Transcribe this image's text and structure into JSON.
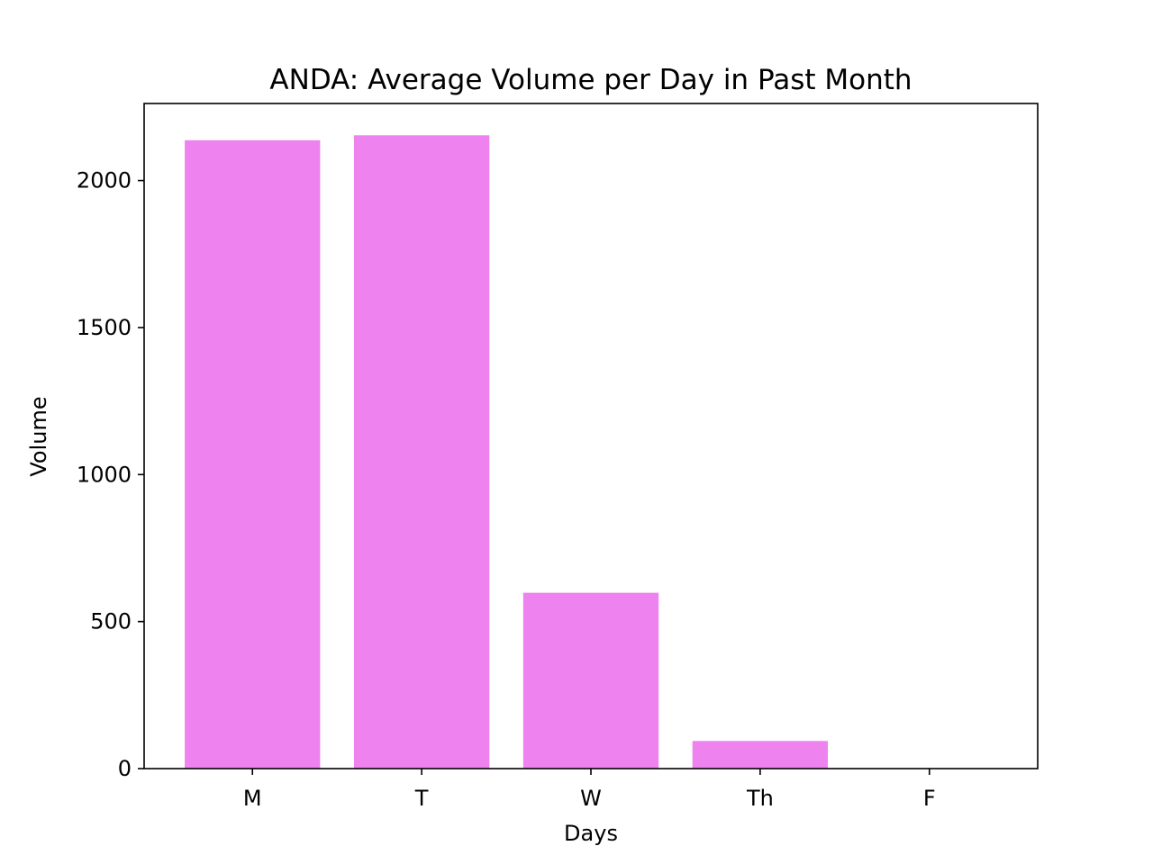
{
  "chart_data": {
    "type": "bar",
    "title": "ANDA: Average Volume per Day in Past Month",
    "xlabel": "Days",
    "ylabel": "Volume",
    "categories": [
      "M",
      "T",
      "W",
      "Th",
      "F"
    ],
    "values": [
      2137,
      2154,
      598,
      94,
      0
    ],
    "ylim": [
      0,
      2262
    ],
    "yticks": [
      0,
      500,
      1000,
      1500,
      2000
    ],
    "ytick_labels": [
      "0",
      "500",
      "1000",
      "1500",
      "2000"
    ],
    "bar_color": "#ee82ee",
    "grid": false,
    "legend": "none"
  }
}
